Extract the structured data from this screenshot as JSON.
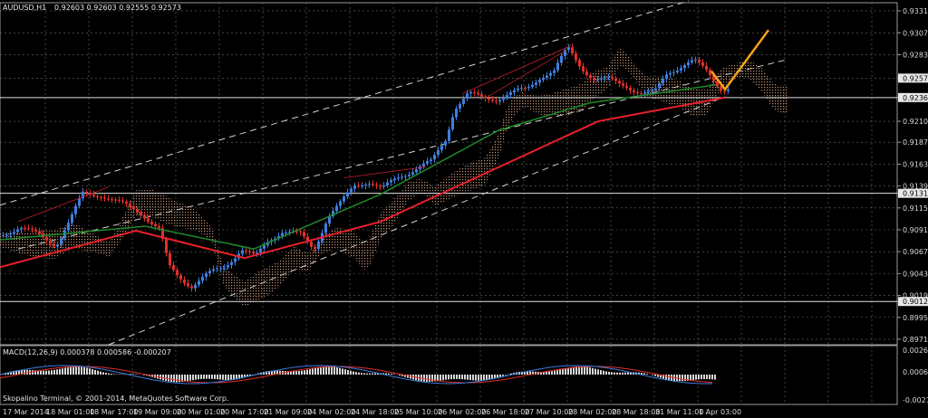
{
  "header": {
    "symbol": "AUDUSD,H1",
    "quote": "0.92603 0.92603 0.92555 0.92573",
    "macd_label": "MACD(12,26,9) 0.000378 0.000586 -0.000207",
    "copyright": "Skopalino Terminal, © 2001-2014, MetaQuotes Software Corp."
  },
  "price_axis": [
    "0.93311",
    "0.93070",
    "0.92830",
    "0.92573",
    "0.92360",
    "0.92100",
    "0.91870",
    "0.91630",
    "0.91390",
    "0.91310",
    "0.91150",
    "0.90910",
    "0.90670",
    "0.90430",
    "0.90190",
    "0.90124",
    "0.89950",
    "0.89710"
  ],
  "macd_axis": [
    "0.00266",
    "0.0006",
    "-0.00271"
  ],
  "time_axis": [
    "17 Mar 2014",
    "18 Mar 01:00",
    "18 Mar 17:00",
    "19 Mar 09:00",
    "20 Mar 01:00",
    "20 Mar 17:00",
    "21 Mar 09:00",
    "24 Mar 02:00",
    "24 Mar 18:00",
    "25 Mar 10:00",
    "26 Mar 02:00",
    "26 Mar 18:00",
    "27 Mar 10:00",
    "28 Mar 02:00",
    "28 Mar 18:00",
    "31 Mar 11:00",
    "1 Apr 03:00"
  ],
  "hlines": [
    "0.92360",
    "0.91310",
    "0.90124"
  ],
  "colors": {
    "background": "#000000",
    "grid": "#6a6a6a",
    "bull": "#3d7fe0",
    "bear": "#e0302a",
    "ma_fast": "#e8202a",
    "ma_slow": "#1f8a2a",
    "cloud": "#d9a080",
    "arrow": "#f5a11a",
    "channel": "#d0d0d0"
  },
  "chart_data": {
    "type": "candlestick",
    "symbol": "AUDUSD",
    "timeframe": "H1",
    "ohlc": [
      0.92603,
      0.92603,
      0.92555,
      0.92573
    ],
    "ylim": [
      0.8965,
      0.934
    ],
    "close_path": [
      [
        0,
        0.9085
      ],
      [
        20,
        0.9095
      ],
      [
        40,
        0.9085
      ],
      [
        60,
        0.9075
      ],
      [
        75,
        0.91
      ],
      [
        90,
        0.913
      ],
      [
        110,
        0.913
      ],
      [
        130,
        0.912
      ],
      [
        155,
        0.911
      ],
      [
        175,
        0.909
      ],
      [
        185,
        0.905
      ],
      [
        195,
        0.904
      ],
      [
        210,
        0.903
      ],
      [
        225,
        0.904
      ],
      [
        245,
        0.905
      ],
      [
        265,
        0.907
      ],
      [
        280,
        0.906
      ],
      [
        295,
        0.908
      ],
      [
        310,
        0.909
      ],
      [
        330,
        0.9085
      ],
      [
        345,
        0.907
      ],
      [
        360,
        0.9105
      ],
      [
        375,
        0.912
      ],
      [
        390,
        0.914
      ],
      [
        405,
        0.9145
      ],
      [
        420,
        0.9135
      ],
      [
        440,
        0.915
      ],
      [
        460,
        0.916
      ],
      [
        475,
        0.9165
      ],
      [
        490,
        0.919
      ],
      [
        500,
        0.9225
      ],
      [
        515,
        0.924
      ],
      [
        530,
        0.9235
      ],
      [
        545,
        0.9235
      ],
      [
        560,
        0.924
      ],
      [
        580,
        0.9245
      ],
      [
        595,
        0.926
      ],
      [
        610,
        0.9265
      ],
      [
        625,
        0.929
      ],
      [
        640,
        0.927
      ],
      [
        655,
        0.9255
      ],
      [
        670,
        0.9255
      ],
      [
        690,
        0.925
      ],
      [
        705,
        0.924
      ],
      [
        720,
        0.924
      ],
      [
        735,
        0.9265
      ],
      [
        750,
        0.927
      ],
      [
        765,
        0.9275
      ],
      [
        780,
        0.9265
      ],
      [
        795,
        0.9245
      ],
      [
        805,
        0.9245
      ]
    ],
    "ma_fast": [
      [
        0,
        0.905
      ],
      [
        150,
        0.909
      ],
      [
        270,
        0.906
      ],
      [
        420,
        0.91
      ],
      [
        540,
        0.9155
      ],
      [
        660,
        0.921
      ],
      [
        800,
        0.9236
      ]
    ],
    "ma_slow": [
      [
        0,
        0.908
      ],
      [
        160,
        0.9095
      ],
      [
        280,
        0.907
      ],
      [
        420,
        0.913
      ],
      [
        550,
        0.92
      ],
      [
        650,
        0.923
      ],
      [
        790,
        0.925
      ]
    ],
    "projection_arrow": [
      [
        800,
        0.9245
      ],
      [
        848,
        0.931
      ]
    ]
  }
}
